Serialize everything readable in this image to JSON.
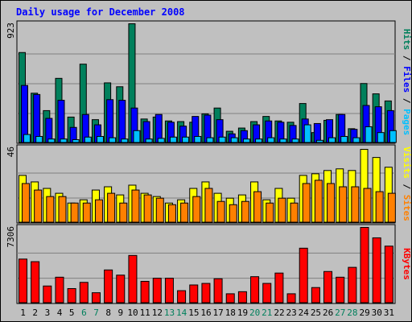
{
  "chart_data": {
    "type": "bar",
    "title": "Daily usage for December 2008",
    "categories": [
      "1",
      "2",
      "3",
      "4",
      "5",
      "6",
      "7",
      "8",
      "9",
      "10",
      "11",
      "12",
      "13",
      "14",
      "15",
      "16",
      "17",
      "18",
      "19",
      "20",
      "21",
      "22",
      "23",
      "24",
      "25",
      "26",
      "27",
      "28",
      "29",
      "30",
      "31"
    ],
    "weekend_days": [
      "6",
      "7",
      "13",
      "14",
      "20",
      "21",
      "27",
      "28"
    ],
    "panels": [
      {
        "id": "hits-files-pages",
        "ymax_label": "923",
        "ylim": [
          0,
          923
        ],
        "series": [
          {
            "name": "Hits",
            "color": "#00805c",
            "values": [
              700,
              385,
              250,
              500,
              200,
              610,
              180,
              465,
              435,
              923,
              185,
              200,
              170,
              165,
              160,
              225,
              270,
              90,
              115,
              165,
              205,
              170,
              160,
              305,
              80,
              175,
              220,
              110,
              460,
              380,
              325
            ]
          },
          {
            "name": "Files",
            "color": "#0000ff",
            "values": [
              445,
              375,
              190,
              330,
              120,
              220,
              140,
              335,
              330,
              270,
              165,
              220,
              160,
              130,
              205,
              215,
              180,
              70,
              95,
              140,
              170,
              160,
              135,
              185,
              150,
              180,
              220,
              105,
              290,
              280,
              250
            ]
          },
          {
            "name": "Pages",
            "color": "#00c0ff",
            "values": [
              65,
              50,
              30,
              30,
              25,
              45,
              50,
              40,
              30,
              95,
              30,
              35,
              45,
              45,
              50,
              40,
              45,
              40,
              30,
              30,
              40,
              30,
              30,
              140,
              20,
              40,
              50,
              40,
              125,
              80,
              95
            ]
          }
        ],
        "legend_text": "Hits / Files / Pages"
      },
      {
        "id": "visits-sites",
        "ymax_label": "46",
        "ylim": [
          0,
          46
        ],
        "series": [
          {
            "name": "Visits",
            "color": "#ffff00",
            "values": [
              29,
              25,
              21,
              18,
              12,
              14,
              20,
              22,
              17,
              23,
              18,
              16,
              12,
              14,
              21,
              25,
              18,
              15,
              17,
              25,
              14,
              21,
              15,
              29,
              30,
              32,
              33,
              32,
              45,
              40,
              34
            ]
          },
          {
            "name": "Sites",
            "color": "#ff8000",
            "values": [
              24,
              20,
              16,
              16,
              12,
              12,
              14,
              18,
              12,
              20,
              17,
              15,
              11,
              12,
              16,
              21,
              13,
              11,
              13,
              19,
              12,
              15,
              12,
              24,
              26,
              24,
              22,
              22,
              21,
              19,
              18
            ]
          }
        ],
        "legend_text": "Visits / Sites"
      },
      {
        "id": "kbytes",
        "ymax_label": "7306",
        "ylim": [
          0,
          7306
        ],
        "series": [
          {
            "name": "KBytes",
            "color": "#ff0000",
            "values": [
              4250,
              4000,
              1650,
              2500,
              1400,
              2000,
              1000,
              3200,
              2700,
              4600,
              2100,
              2400,
              2400,
              1200,
              1750,
              1900,
              2350,
              900,
              1100,
              2550,
              1900,
              2900,
              900,
              5300,
              1500,
              3050,
              2500,
              3450,
              7306,
              6300,
              5500
            ]
          }
        ],
        "legend_text": "KBytes"
      }
    ]
  },
  "colors": {
    "background": "#c0c0c0",
    "plot_area": "#c0c0c0",
    "title": "#0000ff",
    "weekday_label": "#000000",
    "weekend_label": "#00805c",
    "gridline": "#808080"
  }
}
